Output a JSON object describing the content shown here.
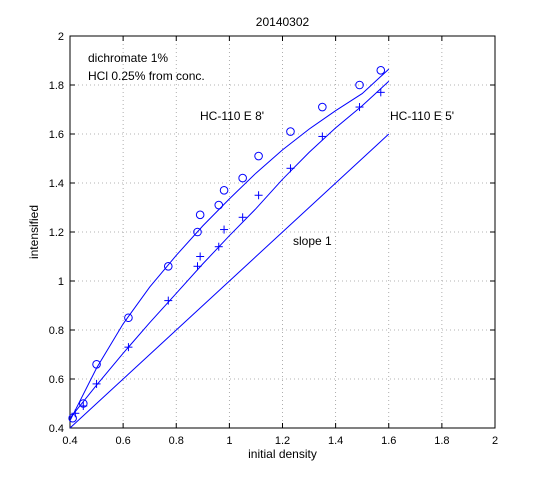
{
  "chart_data": {
    "type": "scatter",
    "title": "20140302",
    "xlabel": "initial density",
    "ylabel": "intensified",
    "xlim": [
      0.4,
      2
    ],
    "ylim": [
      0.4,
      2
    ],
    "xticks": [
      "0.4",
      "0.6",
      "0.8",
      "1",
      "1.2",
      "1.4",
      "1.6",
      "1.8",
      "2"
    ],
    "yticks": [
      "0.4",
      "0.6",
      "0.8",
      "1",
      "1.2",
      "1.4",
      "1.6",
      "1.8",
      "2"
    ],
    "grid": true,
    "annotations": {
      "line1": "dichromate 1%",
      "line2": "HCl 0.25% from conc.",
      "series1_label": "HC-110 E 8'",
      "series2_label": "HC-110 E 5'",
      "reference_label": "slope 1"
    },
    "series": [
      {
        "name": "HC-110 E 8'",
        "marker": "circle",
        "color": "#0000ff",
        "points": [
          [
            0.41,
            0.44
          ],
          [
            0.45,
            0.5
          ],
          [
            0.5,
            0.66
          ],
          [
            0.62,
            0.85
          ],
          [
            0.77,
            1.06
          ],
          [
            0.88,
            1.2
          ],
          [
            0.89,
            1.27
          ],
          [
            0.96,
            1.31
          ],
          [
            0.98,
            1.37
          ],
          [
            1.05,
            1.42
          ],
          [
            1.11,
            1.51
          ],
          [
            1.23,
            1.61
          ],
          [
            1.35,
            1.71
          ],
          [
            1.49,
            1.8
          ],
          [
            1.57,
            1.86
          ]
        ],
        "fit": [
          [
            0.4,
            0.43
          ],
          [
            0.5,
            0.645
          ],
          [
            0.6,
            0.825
          ],
          [
            0.7,
            0.975
          ],
          [
            0.8,
            1.105
          ],
          [
            0.9,
            1.225
          ],
          [
            1.0,
            1.335
          ],
          [
            1.1,
            1.44
          ],
          [
            1.2,
            1.535
          ],
          [
            1.3,
            1.62
          ],
          [
            1.4,
            1.695
          ],
          [
            1.5,
            1.765
          ],
          [
            1.6,
            1.865
          ]
        ]
      },
      {
        "name": "HC-110 E 5'",
        "marker": "plus",
        "color": "#0000ff",
        "points": [
          [
            0.42,
            0.46
          ],
          [
            0.45,
            0.49
          ],
          [
            0.5,
            0.58
          ],
          [
            0.62,
            0.73
          ],
          [
            0.77,
            0.92
          ],
          [
            0.88,
            1.06
          ],
          [
            0.89,
            1.1
          ],
          [
            0.96,
            1.14
          ],
          [
            0.98,
            1.21
          ],
          [
            1.05,
            1.26
          ],
          [
            1.11,
            1.35
          ],
          [
            1.23,
            1.46
          ],
          [
            1.35,
            1.59
          ],
          [
            1.49,
            1.71
          ],
          [
            1.57,
            1.77
          ]
        ],
        "fit": [
          [
            0.4,
            0.44
          ],
          [
            0.5,
            0.575
          ],
          [
            0.6,
            0.705
          ],
          [
            0.7,
            0.83
          ],
          [
            0.8,
            0.95
          ],
          [
            0.9,
            1.07
          ],
          [
            1.0,
            1.185
          ],
          [
            1.1,
            1.295
          ],
          [
            1.2,
            1.415
          ],
          [
            1.3,
            1.525
          ],
          [
            1.4,
            1.625
          ],
          [
            1.5,
            1.715
          ],
          [
            1.6,
            1.815
          ]
        ]
      },
      {
        "name": "slope 1",
        "marker": "none",
        "color": "#0000ff",
        "fit": [
          [
            0.4,
            0.4
          ],
          [
            1.6,
            1.6
          ]
        ]
      }
    ]
  }
}
